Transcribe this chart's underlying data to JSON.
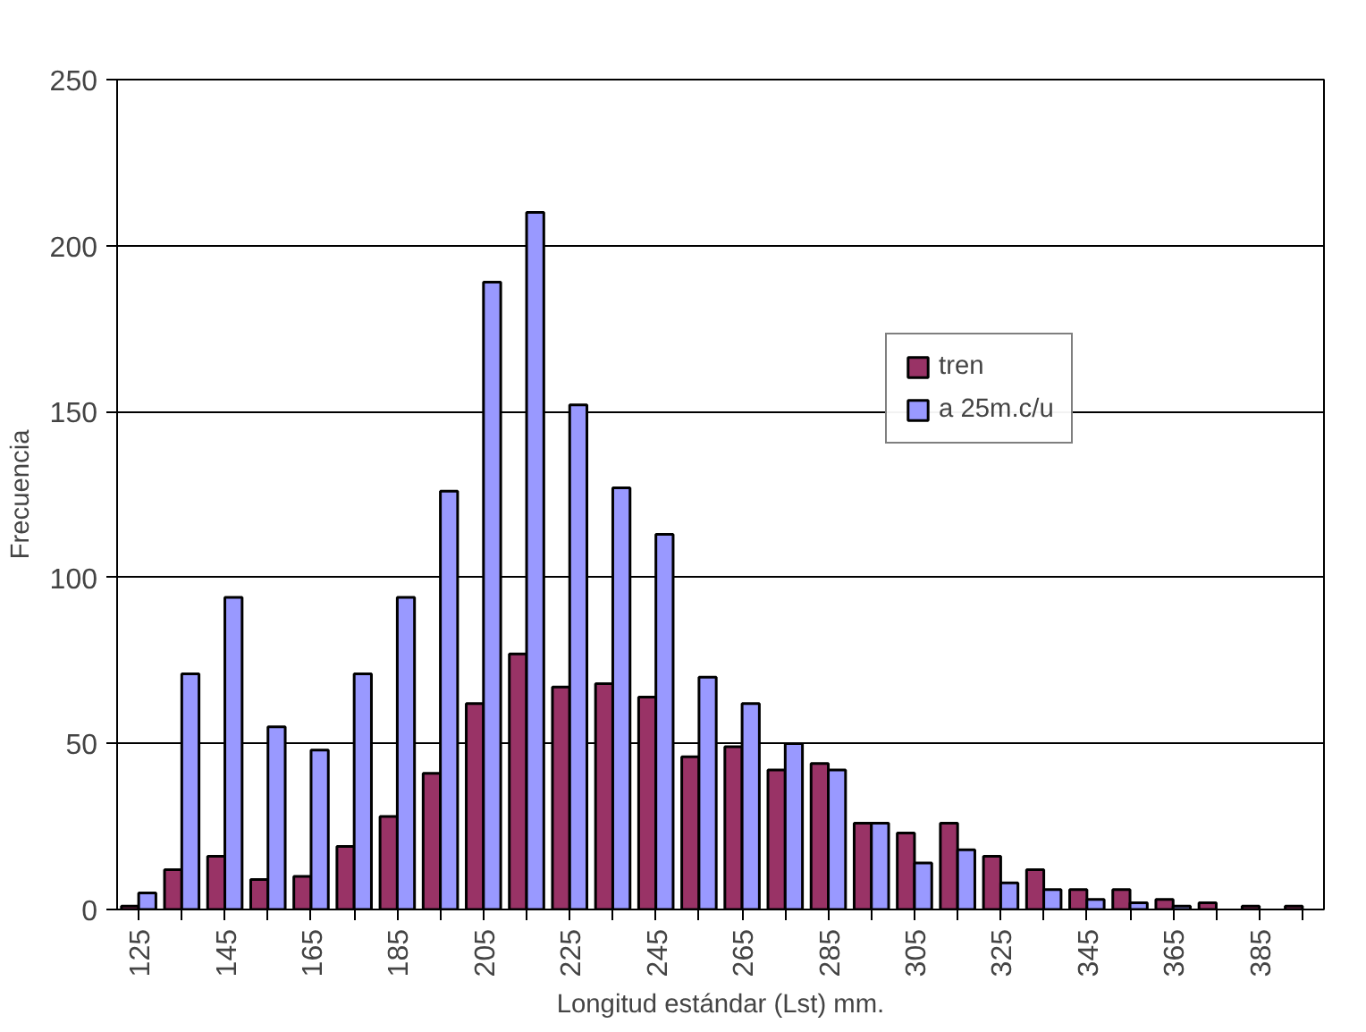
{
  "chart_data": {
    "type": "bar",
    "xlabel": "Longitud estándar (Lst) mm.",
    "ylabel": "Frecuencia",
    "categories": [
      "125",
      null,
      "145",
      null,
      "165",
      null,
      "185",
      null,
      "205",
      null,
      "225",
      null,
      "245",
      null,
      "265",
      null,
      "285",
      null,
      "305",
      null,
      "325",
      null,
      "345",
      null,
      "365",
      null,
      "385",
      null
    ],
    "series": [
      {
        "name": "tren",
        "color": "#993366",
        "values": [
          1,
          12,
          16,
          9,
          10,
          19,
          28,
          41,
          62,
          77,
          67,
          68,
          64,
          46,
          49,
          42,
          44,
          26,
          23,
          26,
          16,
          12,
          6,
          6,
          3,
          2,
          1,
          1
        ]
      },
      {
        "name": "a 25m.c/u",
        "color": "#9999ff",
        "values": [
          5,
          71,
          94,
          55,
          48,
          71,
          94,
          126,
          189,
          210,
          152,
          127,
          113,
          70,
          62,
          50,
          42,
          26,
          14,
          18,
          8,
          6,
          3,
          2,
          1,
          null,
          null,
          null
        ]
      }
    ],
    "ylim": [
      0,
      250
    ],
    "yticks": [
      0,
      50,
      100,
      150,
      200,
      250
    ],
    "grid": "y",
    "legend": "top right"
  }
}
